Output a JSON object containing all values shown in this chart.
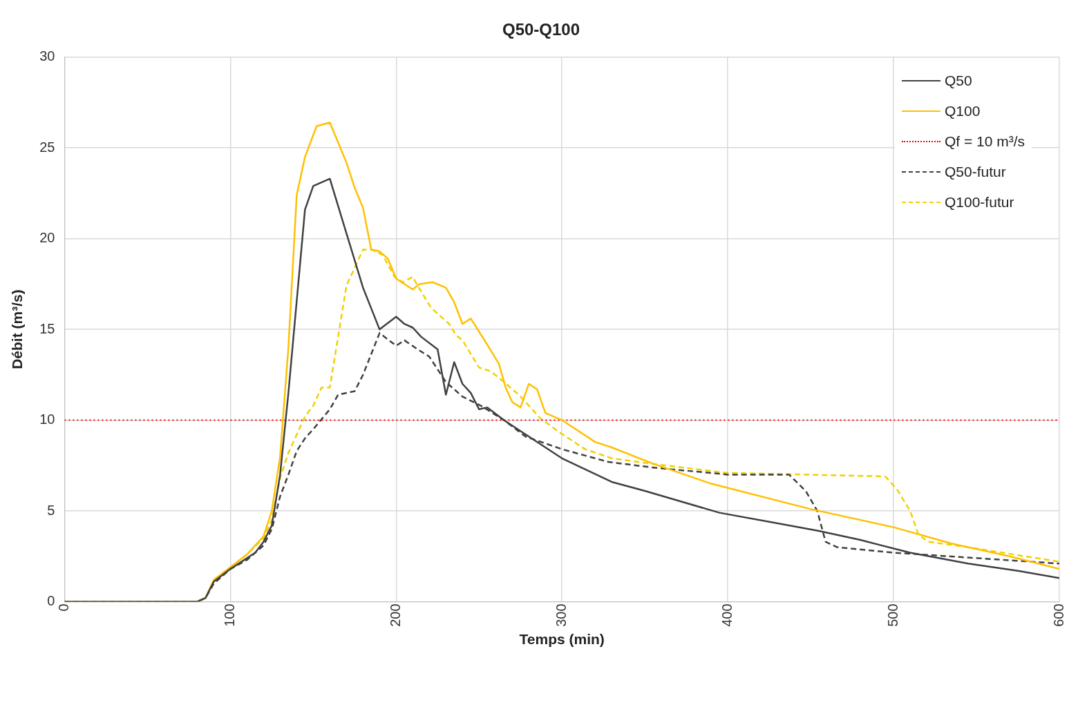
{
  "chart_data": {
    "type": "line",
    "title": "Q50-Q100",
    "xlabel": "Temps (min)",
    "ylabel": "Débit (m³/s)",
    "xlim": [
      0,
      600
    ],
    "xticks": [
      0,
      100,
      200,
      300,
      400,
      500,
      600
    ],
    "ylim": [
      0,
      30
    ],
    "yticks": [
      0,
      5,
      10,
      15,
      20,
      25,
      30
    ],
    "grid": true,
    "legend": "top right",
    "marker": "none",
    "series": [
      {
        "name": "Q50",
        "color": "#404040",
        "line_style": "solid",
        "x": [
          0,
          80,
          85,
          90,
          100,
          110,
          115,
          120,
          125,
          130,
          135,
          145,
          150,
          160,
          170,
          180,
          190,
          200,
          205,
          210,
          215,
          225,
          230,
          235,
          240,
          245,
          250,
          255,
          265,
          280,
          300,
          330,
          350,
          395,
          425,
          455,
          480,
          510,
          545,
          575,
          600
        ],
        "values": [
          0,
          0,
          0.2,
          1.1,
          1.8,
          2.4,
          2.7,
          3.3,
          4.2,
          7,
          11.5,
          21.6,
          22.9,
          23.3,
          20.3,
          17.3,
          15,
          15.7,
          15.3,
          15.1,
          14.6,
          13.9,
          11.4,
          13.2,
          12,
          11.5,
          10.6,
          10.7,
          10,
          9.1,
          7.9,
          6.6,
          6.1,
          4.9,
          4.4,
          3.9,
          3.4,
          2.7,
          2.1,
          1.7,
          1.3
        ]
      },
      {
        "name": "Q100",
        "color": "#ffc000",
        "line_style": "solid",
        "x": [
          0,
          80,
          85,
          90,
          100,
          110,
          120,
          125,
          130,
          135,
          140,
          145,
          152,
          160,
          170,
          175,
          180,
          185,
          190,
          195,
          200,
          210,
          214,
          222,
          230,
          235,
          240,
          245,
          254,
          262,
          266,
          270,
          275,
          280,
          285,
          290,
          300,
          320,
          330,
          355,
          390,
          450,
          500,
          535,
          570,
          600
        ],
        "values": [
          0,
          0,
          0.2,
          1.2,
          1.9,
          2.6,
          3.6,
          5,
          8,
          14,
          22.4,
          24.5,
          26.2,
          26.4,
          24.2,
          22.8,
          21.7,
          19.4,
          19.3,
          18.9,
          17.8,
          17.2,
          17.5,
          17.6,
          17.3,
          16.5,
          15.3,
          15.6,
          14.3,
          13.1,
          11.8,
          11,
          10.7,
          12,
          11.7,
          10.4,
          10,
          8.8,
          8.5,
          7.6,
          6.5,
          5.1,
          4.1,
          3.2,
          2.5,
          1.8
        ]
      },
      {
        "name": "Qf = 10 m³/s",
        "color": "#ff0000",
        "line_style": "dotted",
        "x": [
          0,
          600
        ],
        "values": [
          10,
          10
        ]
      },
      {
        "name": "Q50-futur",
        "color": "#404040",
        "line_style": "dashed",
        "x": [
          0,
          80,
          85,
          90,
          100,
          110,
          120,
          125,
          130,
          135,
          140,
          145,
          150,
          160,
          165,
          175,
          180,
          190,
          200,
          205,
          213,
          220,
          230,
          240,
          251,
          265,
          278,
          300,
          328,
          354,
          400,
          437,
          447,
          454,
          459,
          466,
          500,
          550,
          600
        ],
        "values": [
          0,
          0,
          0.2,
          1,
          1.8,
          2.3,
          3.1,
          4,
          5.8,
          7,
          8.3,
          9,
          9.5,
          10.6,
          11.4,
          11.6,
          12.5,
          14.8,
          14.1,
          14.4,
          13.9,
          13.5,
          12.1,
          11.3,
          10.8,
          10,
          9.1,
          8.4,
          7.7,
          7.4,
          7,
          7,
          6.1,
          5,
          3.3,
          3,
          2.7,
          2.4,
          2.1
        ]
      },
      {
        "name": "Q100-futur",
        "color": "#f2d000",
        "line_style": "dashed",
        "x": [
          0,
          80,
          85,
          90,
          100,
          110,
          120,
          125,
          130,
          135,
          140,
          145,
          150,
          155,
          160,
          170,
          180,
          185,
          192,
          199,
          204,
          210,
          213,
          221,
          232,
          236,
          240,
          250,
          257,
          265,
          274,
          287,
          299,
          314,
          330,
          354,
          399,
          495,
          502,
          510,
          515,
          521,
          545,
          600
        ],
        "values": [
          0,
          0,
          0.2,
          1.2,
          1.9,
          2.6,
          3.5,
          4.5,
          6.8,
          8.2,
          9.2,
          10.2,
          10.8,
          11.8,
          11.8,
          17.4,
          19.4,
          19.4,
          19.1,
          17.9,
          17.6,
          17.9,
          17.4,
          16.2,
          15.3,
          14.7,
          14.4,
          12.9,
          12.7,
          12.1,
          11.4,
          10.1,
          9.3,
          8.4,
          7.9,
          7.6,
          7.1,
          6.9,
          6.2,
          5,
          3.7,
          3.3,
          3,
          2.2
        ]
      }
    ]
  }
}
